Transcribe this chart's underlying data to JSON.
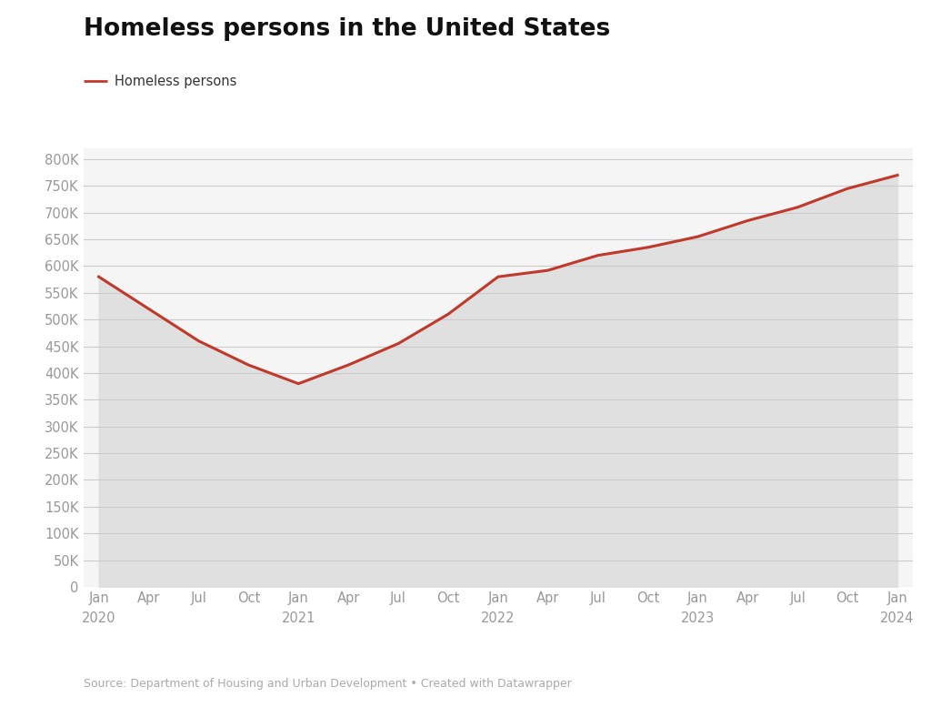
{
  "title": "Homeless persons in the United States",
  "legend_label": "Homeless persons",
  "source": "Source: Department of Housing and Urban Development • Created with Datawrapper",
  "line_color": "#c0392b",
  "fill_color": "#e0e0e0",
  "background_color": "#f5f5f5",
  "plot_background": "#f5f5f5",
  "outer_background": "#ffffff",
  "x_labels_line1": [
    "Jan",
    "Apr",
    "Jul",
    "Oct",
    "Jan",
    "Apr",
    "Jul",
    "Oct",
    "Jan",
    "Apr",
    "Jul",
    "Oct",
    "Jan",
    "Apr",
    "Jul",
    "Oct",
    "Jan"
  ],
  "x_labels_line2": [
    "2020",
    "",
    "",
    "",
    "2021",
    "",
    "",
    "",
    "2022",
    "",
    "",
    "",
    "2023",
    "",
    "",
    "",
    "2024"
  ],
  "x_values": [
    0,
    1,
    2,
    3,
    4,
    5,
    6,
    7,
    8,
    9,
    10,
    11,
    12,
    13,
    14,
    15,
    16
  ],
  "y_values": [
    580000,
    520000,
    460000,
    415000,
    380000,
    415000,
    455000,
    510000,
    580000,
    592000,
    620000,
    635000,
    655000,
    685000,
    710000,
    745000,
    770000
  ],
  "ylim": [
    0,
    820000
  ],
  "yticks": [
    0,
    50000,
    100000,
    150000,
    200000,
    250000,
    300000,
    350000,
    400000,
    450000,
    500000,
    550000,
    600000,
    650000,
    700000,
    750000,
    800000
  ],
  "ytick_labels": [
    "0",
    "50K",
    "100K",
    "150K",
    "200K",
    "250K",
    "300K",
    "350K",
    "400K",
    "450K",
    "500K",
    "550K",
    "600K",
    "650K",
    "700K",
    "750K",
    "800K"
  ]
}
